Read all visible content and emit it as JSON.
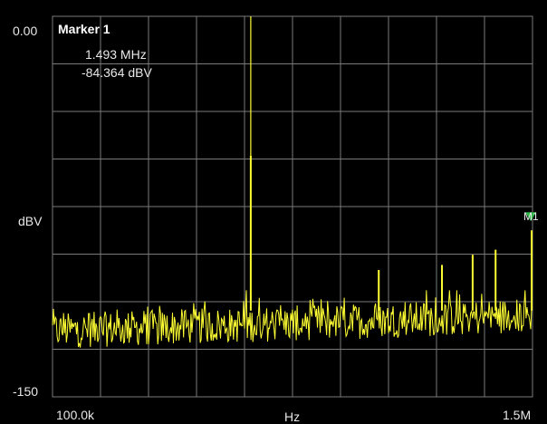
{
  "screen": {
    "y_top_label": "0.00",
    "y_bottom_label": "-150",
    "y_unit": "dBV",
    "x_start_label": "100.0k",
    "x_end_label": "1.5M",
    "x_unit": "Hz"
  },
  "marker": {
    "title": "Marker 1",
    "frequency": "1.493 MHz",
    "level": "-84.364 dBV",
    "tag": "M1",
    "color": "#2fb84a"
  },
  "colors": {
    "background": "#000000",
    "grid": "#7a7a7a",
    "trace": "#ffff33"
  },
  "chart_data": {
    "type": "line",
    "title": "",
    "xlabel": "Hz",
    "ylabel": "dBV",
    "xlim": [
      100000,
      1500000
    ],
    "ylim": [
      -150,
      0
    ],
    "x_scale": "log",
    "grid": true,
    "x_divisions": 10,
    "y_divisions": 8,
    "noise_floor_dBV": [
      -130,
      -112
    ],
    "spikes": [
      {
        "freq_hz": 306000,
        "level_dBV": 0
      },
      {
        "freq_hz": 306000,
        "level_dBV": -55
      },
      {
        "freq_hz": 630000,
        "level_dBV": -100
      },
      {
        "freq_hz": 900000,
        "level_dBV": -98
      },
      {
        "freq_hz": 1070000,
        "level_dBV": -94
      },
      {
        "freq_hz": 1218000,
        "level_dBV": -92
      },
      {
        "freq_hz": 1493000,
        "level_dBV": -84.364
      }
    ],
    "marker": {
      "name": "M1",
      "freq_hz": 1493000,
      "level_dBV": -84.364
    }
  }
}
